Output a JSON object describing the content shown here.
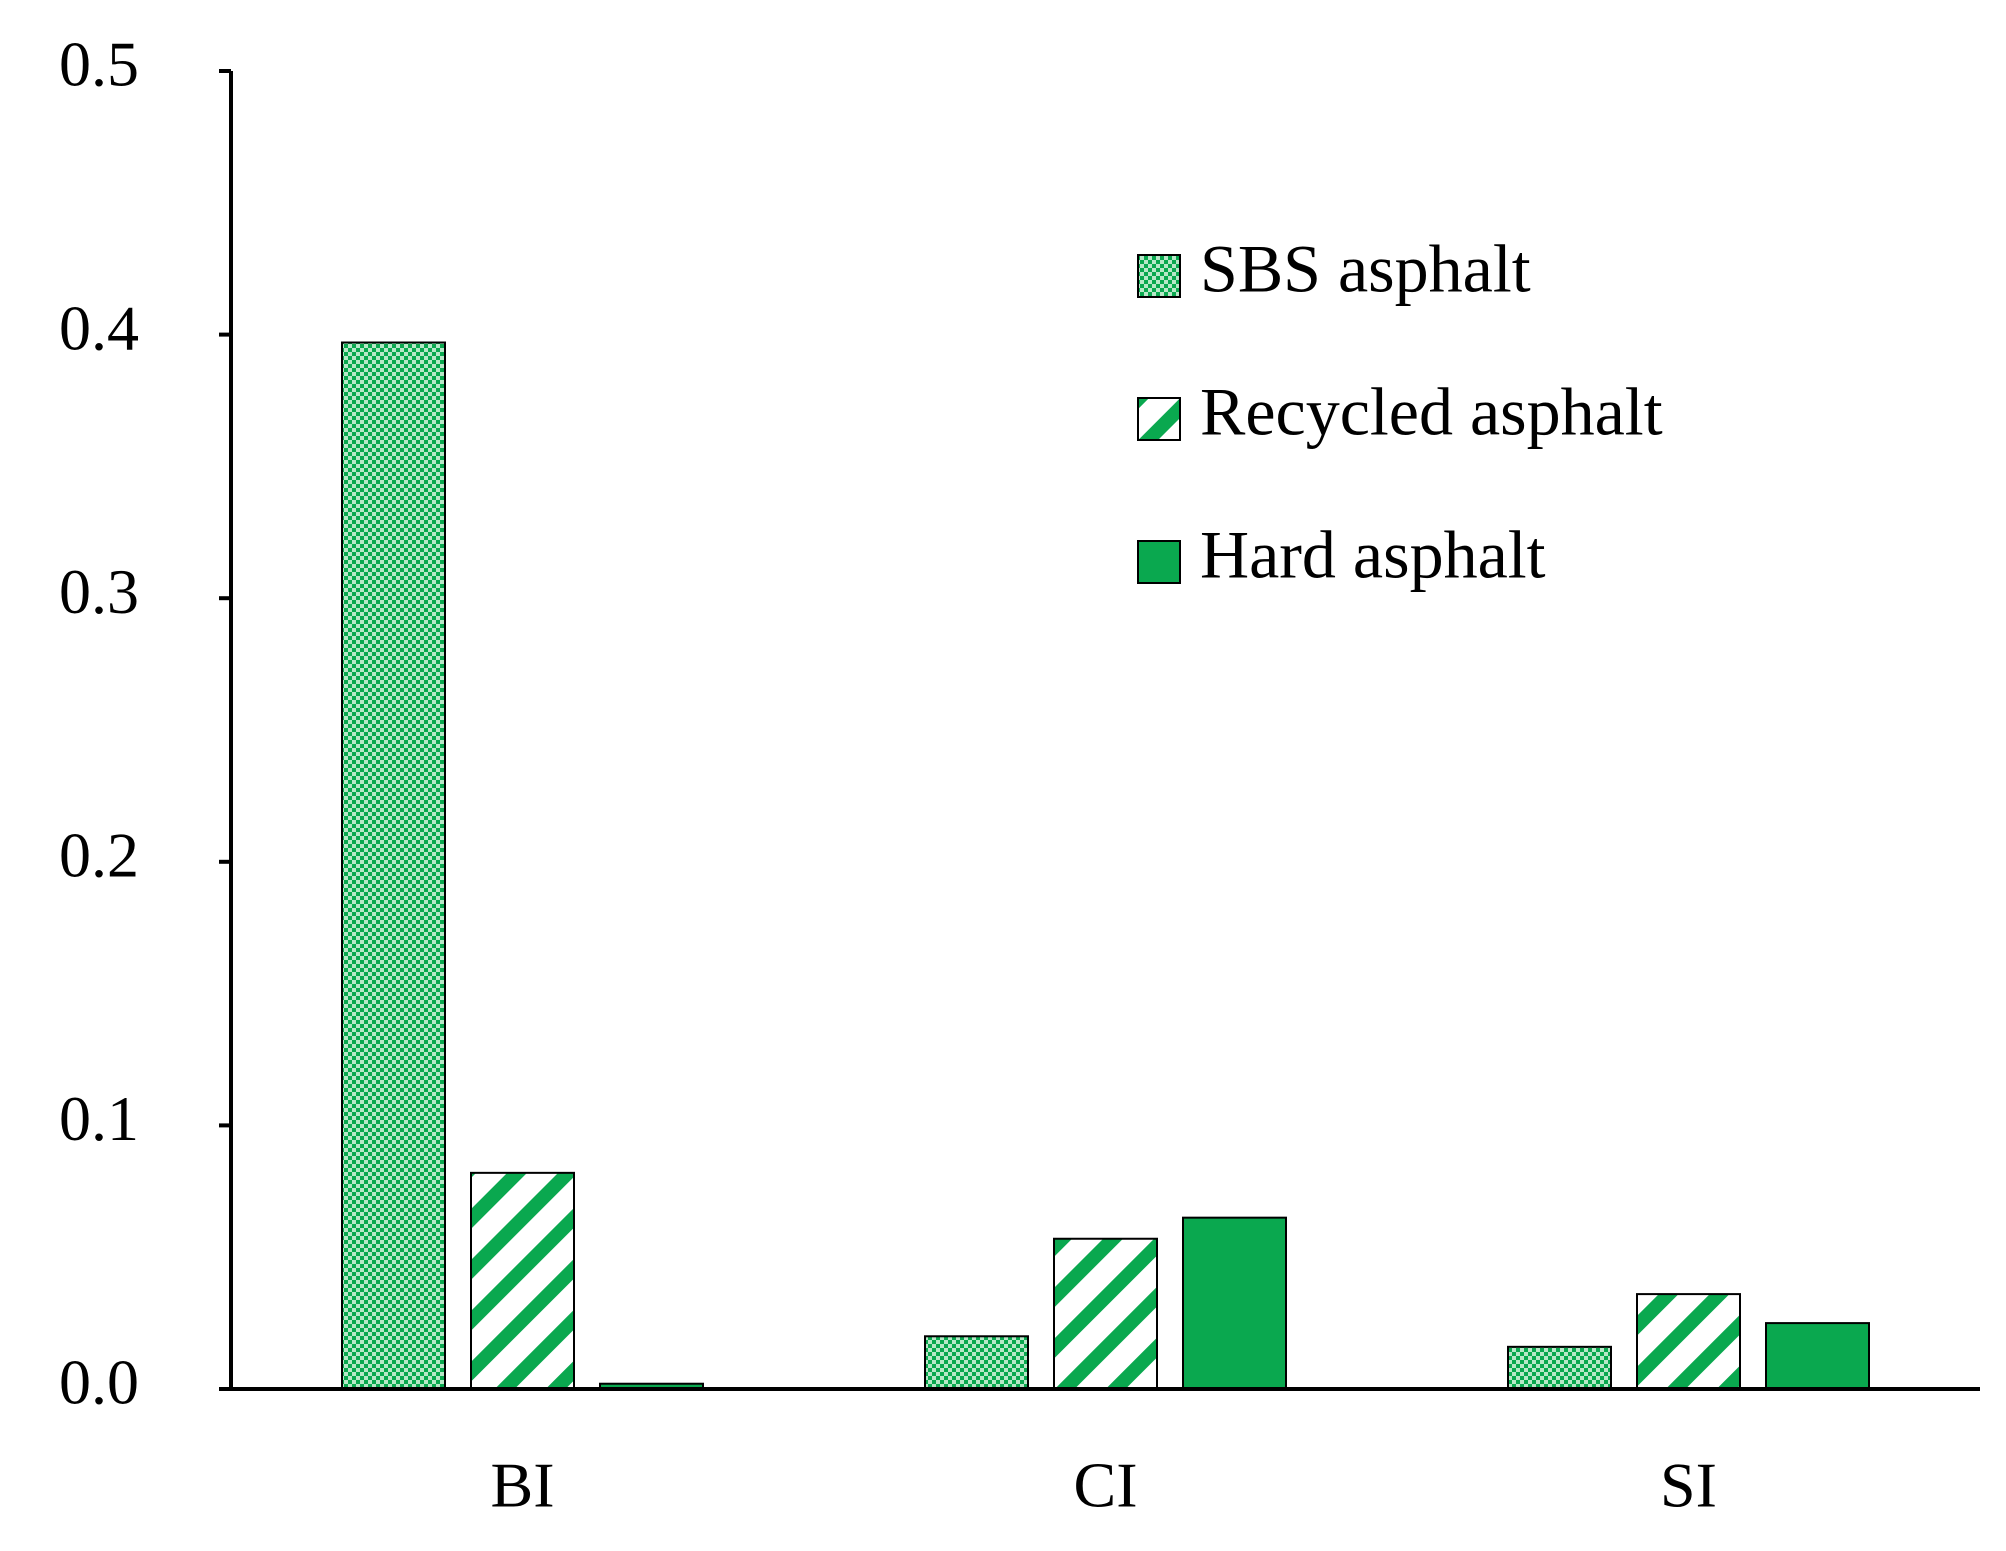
{
  "chart_data": {
    "type": "bar",
    "categories": [
      "BI",
      "CI",
      "SI"
    ],
    "series": [
      {
        "name": "SBS asphalt",
        "color": "#0aa84f",
        "pattern": "dots",
        "values": [
          0.397,
          0.02,
          0.016
        ]
      },
      {
        "name": "Recycled asphalt",
        "color": "#0aa84f",
        "pattern": "stripes",
        "values": [
          0.082,
          0.057,
          0.036
        ]
      },
      {
        "name": "Hard asphalt",
        "color": "#0aa84f",
        "pattern": "solid",
        "values": [
          0.002,
          0.065,
          0.025
        ]
      }
    ],
    "ylim": [
      0,
      0.5
    ],
    "yticks": [
      {
        "value": 0,
        "label": "0.0"
      },
      0.1,
      0.2,
      0.3,
      0.4,
      0.5
    ],
    "grid": false,
    "legend": "upper right"
  }
}
